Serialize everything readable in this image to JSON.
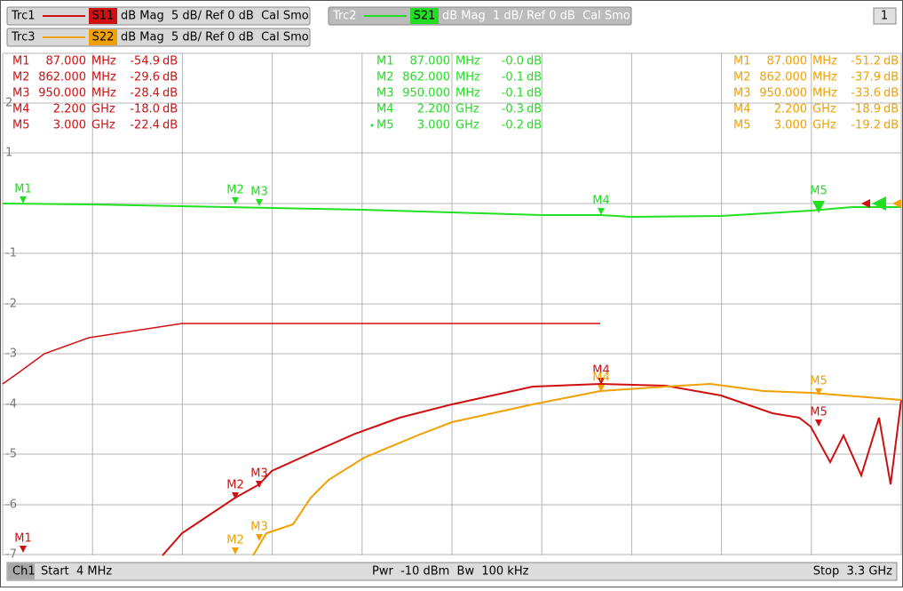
{
  "traces": [
    {
      "name": "Trc1",
      "param": "S11",
      "settings": "dB Mag  5 dB/ Ref 0 dB  Cal Smo"
    },
    {
      "name": "Trc2",
      "param": "S21",
      "settings": "dB Mag  1 dB/ Ref 0 dB  Cal Smo"
    },
    {
      "name": "Trc3",
      "param": "S22",
      "settings": "dB Mag  5 dB/ Ref 0 dB  Cal Smo"
    }
  ],
  "window_number": "1",
  "marker_tables": [
    {
      "rows": [
        [
          "M1",
          "87.000",
          "MHz",
          "-54.9",
          "dB"
        ],
        [
          "M2",
          "862.000",
          "MHz",
          "-29.6",
          "dB"
        ],
        [
          "M3",
          "950.000",
          "MHz",
          "-28.4",
          "dB"
        ],
        [
          "M4",
          "2.200",
          "GHz",
          "-18.0",
          "dB"
        ],
        [
          "M5",
          "3.000",
          "GHz",
          "-22.4",
          "dB"
        ]
      ]
    },
    {
      "rows": [
        [
          "M1",
          "87.000",
          "MHz",
          "-0.0",
          "dB"
        ],
        [
          "M2",
          "862.000",
          "MHz",
          "-0.1",
          "dB"
        ],
        [
          "M3",
          "950.000",
          "MHz",
          "-0.1",
          "dB"
        ],
        [
          "M4",
          "2.200",
          "GHz",
          "-0.3",
          "dB"
        ],
        [
          "M5",
          "3.000",
          "GHz",
          "-0.2",
          "dB"
        ]
      ]
    },
    {
      "rows": [
        [
          "M1",
          "87.000",
          "MHz",
          "-51.2",
          "dB"
        ],
        [
          "M2",
          "862.000",
          "MHz",
          "-37.9",
          "dB"
        ],
        [
          "M3",
          "950.000",
          "MHz",
          "-33.6",
          "dB"
        ],
        [
          "M4",
          "2.200",
          "GHz",
          "-18.9",
          "dB"
        ],
        [
          "M5",
          "3.000",
          "GHz",
          "-19.2",
          "dB"
        ]
      ]
    }
  ],
  "grid_labels": [
    "2",
    "1",
    "-1",
    "-2",
    "-3",
    "-4",
    "-5",
    "-6",
    "-7"
  ],
  "footer": {
    "channel": "Ch1",
    "start": "Start  4 MHz",
    "center": "Pwr  -10 dBm  Bw  100 kHz",
    "stop": "Stop  3.3 GHz"
  }
}
